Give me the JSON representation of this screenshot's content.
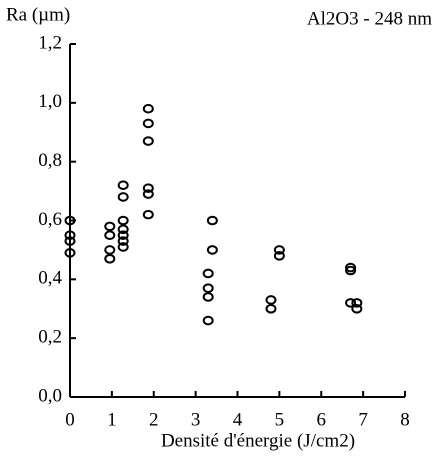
{
  "chart_data": {
    "type": "scatter",
    "y_label": "Ra (µm)",
    "title": "Al2O3 - 248 nm",
    "x_label": "Densité d'énergie  (J/cm2)",
    "x": [
      0,
      0,
      0,
      0,
      0.95,
      0.95,
      0.95,
      0.95,
      1.27,
      1.27,
      1.27,
      1.27,
      1.27,
      1.27,
      1.27,
      1.87,
      1.87,
      1.87,
      1.87,
      1.87,
      1.87,
      3.4,
      3.4,
      3.3,
      3.3,
      3.3,
      3.3,
      4.8,
      4.8,
      5.0,
      5.0,
      6.7,
      6.7,
      6.7,
      6.85,
      6.85
    ],
    "values": [
      0.6,
      0.55,
      0.53,
      0.49,
      0.58,
      0.55,
      0.5,
      0.47,
      0.72,
      0.68,
      0.6,
      0.57,
      0.55,
      0.53,
      0.51,
      0.98,
      0.93,
      0.87,
      0.71,
      0.69,
      0.62,
      0.6,
      0.5,
      0.42,
      0.37,
      0.34,
      0.26,
      0.33,
      0.3,
      0.5,
      0.48,
      0.44,
      0.43,
      0.32,
      0.32,
      0.3
    ],
    "color": "#000000",
    "xlim": [
      0,
      8
    ],
    "xticks": [
      0,
      1,
      2,
      3,
      4,
      5,
      6,
      7,
      8
    ],
    "ylim": [
      0,
      1.2
    ],
    "yticks": [
      {
        "value": 0,
        "label": "0,0"
      },
      {
        "value": 0.2,
        "label": "0,2"
      },
      {
        "value": 0.4,
        "label": "0,4"
      },
      {
        "value": 0.6,
        "label": "0,6"
      },
      {
        "value": 0.8,
        "label": "0,8"
      },
      {
        "value": 1.0,
        "label": "1,0"
      },
      {
        "value": 1.2,
        "label": "1,2"
      }
    ]
  }
}
